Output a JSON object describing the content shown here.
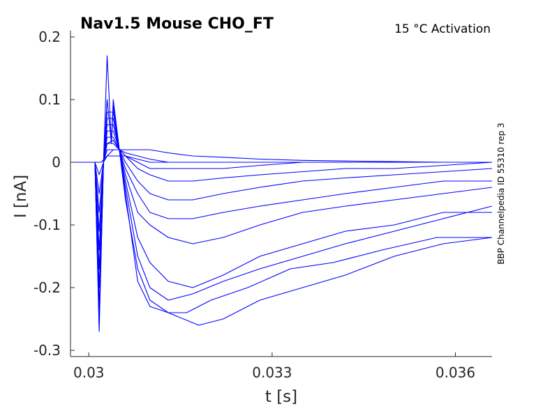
{
  "chart_data": {
    "type": "line",
    "title": "Nav1.5  Mouse  CHO_FT",
    "subtitle": "15 °C  Activation",
    "side_label": "BBP Channelpedia ID 55310 rep 3",
    "xlabel": "t [s]",
    "ylabel": "I [nA]",
    "xlim": [
      0.0297,
      0.0366
    ],
    "ylim": [
      -0.31,
      0.21
    ],
    "xticks": [
      0.03,
      0.033,
      0.036
    ],
    "xtick_labels": [
      "0.03",
      "0.033",
      "0.036"
    ],
    "yticks": [
      0.2,
      0.1,
      0,
      -0.1,
      -0.2,
      -0.3
    ],
    "ytick_labels": [
      "0.2",
      "0.1",
      "0",
      "-0.1",
      "-0.2",
      "-0.3"
    ],
    "grid": false,
    "line_color": "#0000ff",
    "series": [
      {
        "values": [
          [
            0.0297,
            0.0
          ],
          [
            0.0301,
            0.0
          ],
          [
            0.03017,
            -0.27
          ],
          [
            0.03024,
            0.0
          ],
          [
            0.0303,
            0.17
          ],
          [
            0.03037,
            0.03
          ],
          [
            0.0304,
            0.09
          ],
          [
            0.0305,
            0.02
          ],
          [
            0.0306,
            -0.05
          ],
          [
            0.0308,
            -0.19
          ],
          [
            0.031,
            -0.23
          ],
          [
            0.0313,
            -0.24
          ],
          [
            0.0318,
            -0.26
          ],
          [
            0.0322,
            -0.25
          ],
          [
            0.0328,
            -0.22
          ],
          [
            0.0335,
            -0.2
          ],
          [
            0.0342,
            -0.18
          ],
          [
            0.035,
            -0.15
          ],
          [
            0.0358,
            -0.13
          ],
          [
            0.0366,
            -0.12
          ]
        ]
      },
      {
        "values": [
          [
            0.0297,
            0.0
          ],
          [
            0.0301,
            0.0
          ],
          [
            0.03017,
            -0.26
          ],
          [
            0.03024,
            0.0
          ],
          [
            0.0303,
            0.1
          ],
          [
            0.03037,
            0.03
          ],
          [
            0.0304,
            0.1
          ],
          [
            0.0305,
            0.02
          ],
          [
            0.0306,
            -0.06
          ],
          [
            0.0308,
            -0.17
          ],
          [
            0.031,
            -0.22
          ],
          [
            0.0313,
            -0.24
          ],
          [
            0.0316,
            -0.24
          ],
          [
            0.032,
            -0.22
          ],
          [
            0.0326,
            -0.2
          ],
          [
            0.0333,
            -0.17
          ],
          [
            0.034,
            -0.16
          ],
          [
            0.0348,
            -0.14
          ],
          [
            0.0357,
            -0.12
          ],
          [
            0.0366,
            -0.12
          ]
        ]
      },
      {
        "values": [
          [
            0.0297,
            0.0
          ],
          [
            0.0301,
            0.0
          ],
          [
            0.03017,
            -0.25
          ],
          [
            0.03024,
            0.0
          ],
          [
            0.0303,
            0.08
          ],
          [
            0.0304,
            0.08
          ],
          [
            0.0305,
            0.02
          ],
          [
            0.0306,
            -0.04
          ],
          [
            0.0308,
            -0.15
          ],
          [
            0.031,
            -0.2
          ],
          [
            0.0313,
            -0.22
          ],
          [
            0.0317,
            -0.21
          ],
          [
            0.0322,
            -0.19
          ],
          [
            0.0328,
            -0.17
          ],
          [
            0.0335,
            -0.15
          ],
          [
            0.0342,
            -0.13
          ],
          [
            0.035,
            -0.11
          ],
          [
            0.0358,
            -0.09
          ],
          [
            0.0366,
            -0.07
          ]
        ]
      },
      {
        "values": [
          [
            0.0297,
            0.0
          ],
          [
            0.0301,
            0.0
          ],
          [
            0.03017,
            -0.23
          ],
          [
            0.03024,
            0.0
          ],
          [
            0.0303,
            0.07
          ],
          [
            0.0304,
            0.07
          ],
          [
            0.0305,
            0.02
          ],
          [
            0.0306,
            -0.03
          ],
          [
            0.0308,
            -0.12
          ],
          [
            0.031,
            -0.16
          ],
          [
            0.0313,
            -0.19
          ],
          [
            0.0317,
            -0.2
          ],
          [
            0.0322,
            -0.18
          ],
          [
            0.0328,
            -0.15
          ],
          [
            0.0335,
            -0.13
          ],
          [
            0.0342,
            -0.11
          ],
          [
            0.035,
            -0.1
          ],
          [
            0.0358,
            -0.08
          ],
          [
            0.0366,
            -0.08
          ]
        ]
      },
      {
        "values": [
          [
            0.0297,
            0.0
          ],
          [
            0.0301,
            0.0
          ],
          [
            0.03017,
            -0.2
          ],
          [
            0.03024,
            0.0
          ],
          [
            0.0303,
            0.06
          ],
          [
            0.0304,
            0.06
          ],
          [
            0.0305,
            0.02
          ],
          [
            0.0306,
            -0.02
          ],
          [
            0.0308,
            -0.08
          ],
          [
            0.031,
            -0.1
          ],
          [
            0.0313,
            -0.12
          ],
          [
            0.0317,
            -0.13
          ],
          [
            0.0322,
            -0.12
          ],
          [
            0.0328,
            -0.1
          ],
          [
            0.0335,
            -0.08
          ],
          [
            0.0342,
            -0.07
          ],
          [
            0.035,
            -0.06
          ],
          [
            0.0358,
            -0.05
          ],
          [
            0.0366,
            -0.04
          ]
        ]
      },
      {
        "values": [
          [
            0.0297,
            0.0
          ],
          [
            0.0301,
            0.0
          ],
          [
            0.03017,
            -0.17
          ],
          [
            0.03024,
            0.0
          ],
          [
            0.0303,
            0.05
          ],
          [
            0.0304,
            0.05
          ],
          [
            0.0305,
            0.02
          ],
          [
            0.0306,
            -0.01
          ],
          [
            0.0308,
            -0.05
          ],
          [
            0.031,
            -0.08
          ],
          [
            0.0313,
            -0.09
          ],
          [
            0.0317,
            -0.09
          ],
          [
            0.0322,
            -0.08
          ],
          [
            0.0328,
            -0.07
          ],
          [
            0.0335,
            -0.06
          ],
          [
            0.0342,
            -0.05
          ],
          [
            0.035,
            -0.04
          ],
          [
            0.0358,
            -0.03
          ],
          [
            0.0366,
            -0.03
          ]
        ]
      },
      {
        "values": [
          [
            0.0297,
            0.0
          ],
          [
            0.0301,
            0.0
          ],
          [
            0.03017,
            -0.14
          ],
          [
            0.03024,
            0.0
          ],
          [
            0.0303,
            0.04
          ],
          [
            0.0304,
            0.04
          ],
          [
            0.0305,
            0.02
          ],
          [
            0.0306,
            0.0
          ],
          [
            0.0308,
            -0.03
          ],
          [
            0.031,
            -0.05
          ],
          [
            0.0313,
            -0.06
          ],
          [
            0.0317,
            -0.06
          ],
          [
            0.0322,
            -0.05
          ],
          [
            0.0328,
            -0.04
          ],
          [
            0.0335,
            -0.03
          ],
          [
            0.0342,
            -0.025
          ],
          [
            0.035,
            -0.02
          ],
          [
            0.0358,
            -0.015
          ],
          [
            0.0366,
            -0.01
          ]
        ]
      },
      {
        "values": [
          [
            0.0297,
            0.0
          ],
          [
            0.0301,
            0.0
          ],
          [
            0.03017,
            -0.11
          ],
          [
            0.03024,
            0.0
          ],
          [
            0.0303,
            0.03
          ],
          [
            0.0304,
            0.035
          ],
          [
            0.0305,
            0.02
          ],
          [
            0.0306,
            0.01
          ],
          [
            0.0308,
            -0.01
          ],
          [
            0.031,
            -0.02
          ],
          [
            0.0313,
            -0.03
          ],
          [
            0.0317,
            -0.03
          ],
          [
            0.0322,
            -0.025
          ],
          [
            0.0328,
            -0.02
          ],
          [
            0.0335,
            -0.015
          ],
          [
            0.0342,
            -0.01
          ],
          [
            0.035,
            -0.01
          ],
          [
            0.0358,
            -0.005
          ],
          [
            0.0366,
            0.0
          ]
        ]
      },
      {
        "values": [
          [
            0.0297,
            0.0
          ],
          [
            0.0301,
            0.0
          ],
          [
            0.03017,
            -0.08
          ],
          [
            0.03024,
            0.0
          ],
          [
            0.0303,
            0.03
          ],
          [
            0.0304,
            0.03
          ],
          [
            0.0305,
            0.02
          ],
          [
            0.0306,
            0.01
          ],
          [
            0.0308,
            0.0
          ],
          [
            0.031,
            -0.01
          ],
          [
            0.0313,
            -0.01
          ],
          [
            0.0317,
            -0.01
          ],
          [
            0.0322,
            -0.01
          ],
          [
            0.0328,
            -0.005
          ],
          [
            0.0335,
            0.0
          ],
          [
            0.0342,
            0.0
          ],
          [
            0.035,
            0.0
          ],
          [
            0.0358,
            0.0
          ],
          [
            0.0366,
            0.0
          ]
        ]
      },
      {
        "values": [
          [
            0.0297,
            0.0
          ],
          [
            0.0301,
            0.0
          ],
          [
            0.03017,
            -0.05
          ],
          [
            0.03024,
            0.0
          ],
          [
            0.0303,
            0.02
          ],
          [
            0.0304,
            0.02
          ],
          [
            0.0305,
            0.02
          ],
          [
            0.0306,
            0.015
          ],
          [
            0.0308,
            0.01
          ],
          [
            0.031,
            0.005
          ],
          [
            0.0313,
            0.0
          ],
          [
            0.0317,
            0.0
          ],
          [
            0.0322,
            0.0
          ],
          [
            0.0328,
            0.0
          ],
          [
            0.0335,
            0.0
          ],
          [
            0.0342,
            0.0
          ],
          [
            0.035,
            0.0
          ],
          [
            0.0358,
            0.0
          ],
          [
            0.0366,
            0.0
          ]
        ]
      },
      {
        "values": [
          [
            0.0297,
            0.0
          ],
          [
            0.0301,
            0.0
          ],
          [
            0.03017,
            -0.02
          ],
          [
            0.03024,
            0.0
          ],
          [
            0.0303,
            0.01
          ],
          [
            0.0304,
            0.02
          ],
          [
            0.0305,
            0.02
          ],
          [
            0.0306,
            0.02
          ],
          [
            0.0308,
            0.02
          ],
          [
            0.031,
            0.02
          ],
          [
            0.0313,
            0.015
          ],
          [
            0.0317,
            0.01
          ],
          [
            0.0322,
            0.008
          ],
          [
            0.0328,
            0.005
          ],
          [
            0.0335,
            0.003
          ],
          [
            0.0342,
            0.002
          ],
          [
            0.035,
            0.001
          ],
          [
            0.0358,
            0.0
          ],
          [
            0.0366,
            0.0
          ]
        ]
      },
      {
        "values": [
          [
            0.0297,
            0.0
          ],
          [
            0.0301,
            0.0
          ],
          [
            0.0302,
            0.0
          ],
          [
            0.0303,
            0.01
          ],
          [
            0.0304,
            0.01
          ],
          [
            0.0305,
            0.01
          ],
          [
            0.0306,
            0.01
          ],
          [
            0.0308,
            0.005
          ],
          [
            0.031,
            0.0
          ],
          [
            0.0313,
            0.0
          ],
          [
            0.0317,
            0.0
          ],
          [
            0.0322,
            0.0
          ],
          [
            0.0328,
            0.0
          ],
          [
            0.0335,
            0.0
          ],
          [
            0.0342,
            0.0
          ],
          [
            0.035,
            0.0
          ],
          [
            0.0358,
            0.0
          ],
          [
            0.0366,
            0.0
          ]
        ]
      }
    ]
  }
}
